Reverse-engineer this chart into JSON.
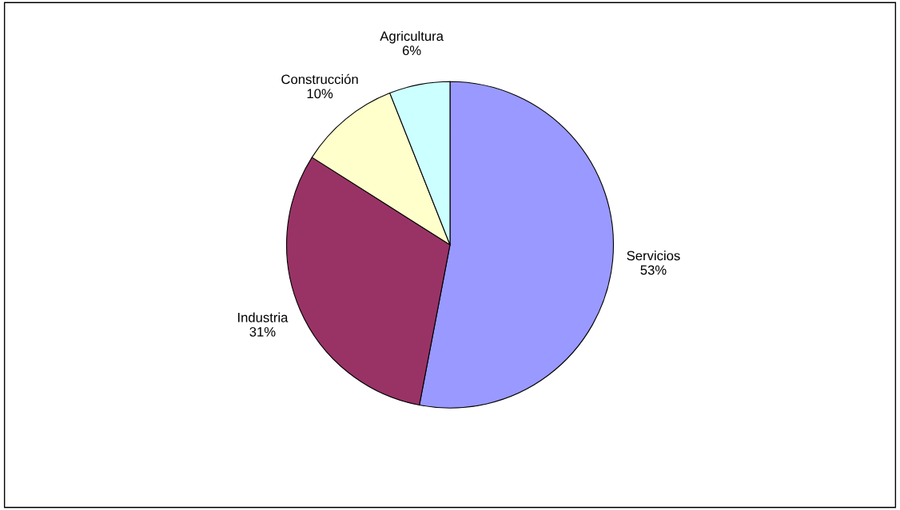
{
  "chart_data": {
    "type": "pie",
    "categories": [
      "Servicios",
      "Industria",
      "Construcción",
      "Agricultura"
    ],
    "values": [
      53,
      31,
      10,
      6
    ],
    "value_labels": [
      "53%",
      "31%",
      "10%",
      "6%"
    ],
    "colors": [
      "#9999ff",
      "#993366",
      "#ffffcc",
      "#ccffff"
    ],
    "legend": false
  }
}
